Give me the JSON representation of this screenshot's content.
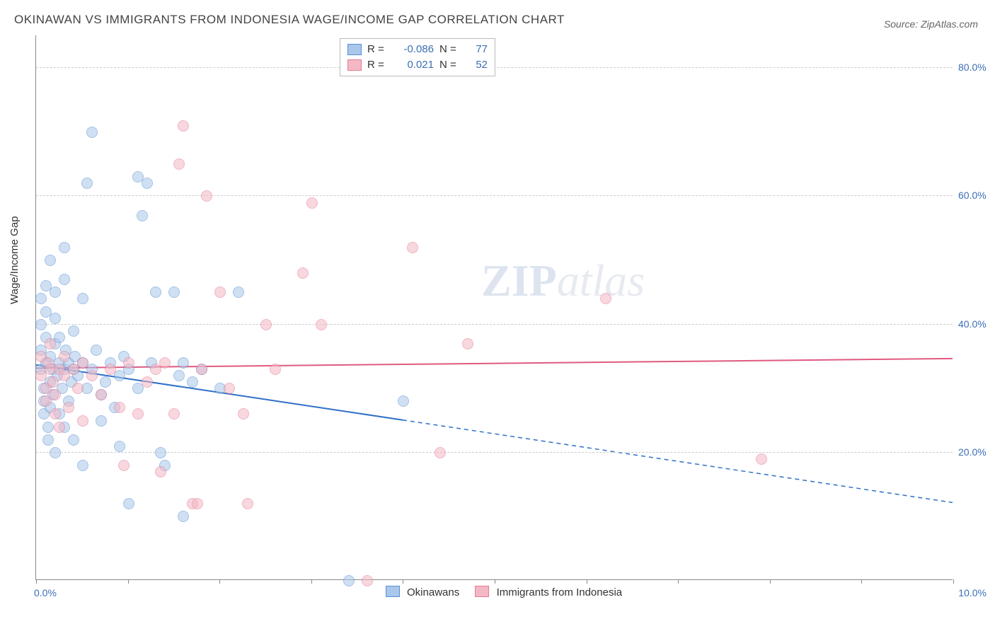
{
  "title": "OKINAWAN VS IMMIGRANTS FROM INDONESIA WAGE/INCOME GAP CORRELATION CHART",
  "source": "Source: ZipAtlas.com",
  "ylabel": "Wage/Income Gap",
  "watermark": {
    "bold": "ZIP",
    "rest": "atlas"
  },
  "chart": {
    "type": "scatter",
    "background_color": "#ffffff",
    "grid_color": "#cccccc",
    "axis_color": "#888888",
    "x": {
      "min": 0.0,
      "max": 10.0,
      "ticks": [
        0,
        1,
        2,
        3,
        4,
        5,
        6,
        7,
        8,
        9,
        10
      ],
      "labels": [
        "0.0%",
        "10.0%"
      ]
    },
    "y": {
      "min": 0.0,
      "max": 85.0,
      "gridlines": [
        20,
        40,
        60,
        80
      ],
      "labels": [
        "20.0%",
        "40.0%",
        "60.0%",
        "80.0%"
      ]
    },
    "series": [
      {
        "name": "Okinawans",
        "fill": "#a9c7ea",
        "stroke": "#5a8fd4",
        "trend": {
          "y_at_xmin": 33.5,
          "y_at_xmax": 12.0,
          "solid_until_x": 4.0,
          "color": "#2f6fc7",
          "width": 2
        },
        "R": "-0.086",
        "N": "77",
        "points": [
          [
            0.05,
            33
          ],
          [
            0.05,
            36
          ],
          [
            0.05,
            40
          ],
          [
            0.05,
            44
          ],
          [
            0.08,
            30
          ],
          [
            0.08,
            28
          ],
          [
            0.08,
            26
          ],
          [
            0.1,
            34
          ],
          [
            0.1,
            38
          ],
          [
            0.1,
            42
          ],
          [
            0.1,
            46
          ],
          [
            0.12,
            24
          ],
          [
            0.12,
            22
          ],
          [
            0.15,
            35
          ],
          [
            0.15,
            31
          ],
          [
            0.15,
            27
          ],
          [
            0.15,
            50
          ],
          [
            0.18,
            33
          ],
          [
            0.18,
            29
          ],
          [
            0.2,
            37
          ],
          [
            0.2,
            41
          ],
          [
            0.2,
            45
          ],
          [
            0.2,
            20
          ],
          [
            0.22,
            32
          ],
          [
            0.25,
            34
          ],
          [
            0.25,
            38
          ],
          [
            0.25,
            26
          ],
          [
            0.28,
            30
          ],
          [
            0.3,
            33
          ],
          [
            0.3,
            47
          ],
          [
            0.3,
            24
          ],
          [
            0.3,
            52
          ],
          [
            0.32,
            36
          ],
          [
            0.35,
            34
          ],
          [
            0.35,
            28
          ],
          [
            0.38,
            31
          ],
          [
            0.4,
            33
          ],
          [
            0.4,
            39
          ],
          [
            0.4,
            22
          ],
          [
            0.42,
            35
          ],
          [
            0.45,
            32
          ],
          [
            0.5,
            34
          ],
          [
            0.5,
            44
          ],
          [
            0.5,
            18
          ],
          [
            0.55,
            30
          ],
          [
            0.55,
            62
          ],
          [
            0.6,
            33
          ],
          [
            0.6,
            70
          ],
          [
            0.65,
            36
          ],
          [
            0.7,
            29
          ],
          [
            0.7,
            25
          ],
          [
            0.75,
            31
          ],
          [
            0.8,
            34
          ],
          [
            0.85,
            27
          ],
          [
            0.9,
            32
          ],
          [
            0.9,
            21
          ],
          [
            0.95,
            35
          ],
          [
            1.0,
            33
          ],
          [
            1.0,
            12
          ],
          [
            1.1,
            30
          ],
          [
            1.1,
            63
          ],
          [
            1.15,
            57
          ],
          [
            1.2,
            62
          ],
          [
            1.25,
            34
          ],
          [
            1.3,
            45
          ],
          [
            1.35,
            20
          ],
          [
            1.4,
            18
          ],
          [
            1.5,
            45
          ],
          [
            1.55,
            32
          ],
          [
            1.6,
            34
          ],
          [
            1.6,
            10
          ],
          [
            1.7,
            31
          ],
          [
            1.8,
            33
          ],
          [
            2.0,
            30
          ],
          [
            2.2,
            45
          ],
          [
            3.4,
            0
          ],
          [
            4.0,
            28
          ]
        ]
      },
      {
        "name": "Immigrants from Indonesia",
        "fill": "#f3b8c4",
        "stroke": "#e47a93",
        "trend": {
          "y_at_xmin": 33.0,
          "y_at_xmax": 34.5,
          "solid_until_x": 10.0,
          "color": "#e05a80",
          "width": 2
        },
        "R": "0.021",
        "N": "52",
        "points": [
          [
            0.05,
            32
          ],
          [
            0.05,
            35
          ],
          [
            0.1,
            30
          ],
          [
            0.1,
            28
          ],
          [
            0.12,
            34
          ],
          [
            0.15,
            33
          ],
          [
            0.15,
            37
          ],
          [
            0.18,
            31
          ],
          [
            0.2,
            26
          ],
          [
            0.2,
            29
          ],
          [
            0.25,
            33
          ],
          [
            0.25,
            24
          ],
          [
            0.3,
            32
          ],
          [
            0.3,
            35
          ],
          [
            0.35,
            27
          ],
          [
            0.4,
            33
          ],
          [
            0.45,
            30
          ],
          [
            0.5,
            34
          ],
          [
            0.5,
            25
          ],
          [
            0.6,
            32
          ],
          [
            0.7,
            29
          ],
          [
            0.8,
            33
          ],
          [
            0.9,
            27
          ],
          [
            0.95,
            18
          ],
          [
            1.0,
            34
          ],
          [
            1.1,
            26
          ],
          [
            1.2,
            31
          ],
          [
            1.3,
            33
          ],
          [
            1.35,
            17
          ],
          [
            1.4,
            34
          ],
          [
            1.5,
            26
          ],
          [
            1.55,
            65
          ],
          [
            1.6,
            71
          ],
          [
            1.7,
            12
          ],
          [
            1.75,
            12
          ],
          [
            1.8,
            33
          ],
          [
            1.85,
            60
          ],
          [
            2.0,
            45
          ],
          [
            2.1,
            30
          ],
          [
            2.25,
            26
          ],
          [
            2.3,
            12
          ],
          [
            2.5,
            40
          ],
          [
            2.6,
            33
          ],
          [
            2.9,
            48
          ],
          [
            3.0,
            59
          ],
          [
            3.1,
            40
          ],
          [
            3.6,
            0
          ],
          [
            4.1,
            52
          ],
          [
            4.4,
            20
          ],
          [
            4.7,
            37
          ],
          [
            6.2,
            44
          ],
          [
            7.9,
            19
          ]
        ]
      }
    ],
    "bottom_legend": [
      "Okinawans",
      "Immigrants from Indonesia"
    ]
  }
}
